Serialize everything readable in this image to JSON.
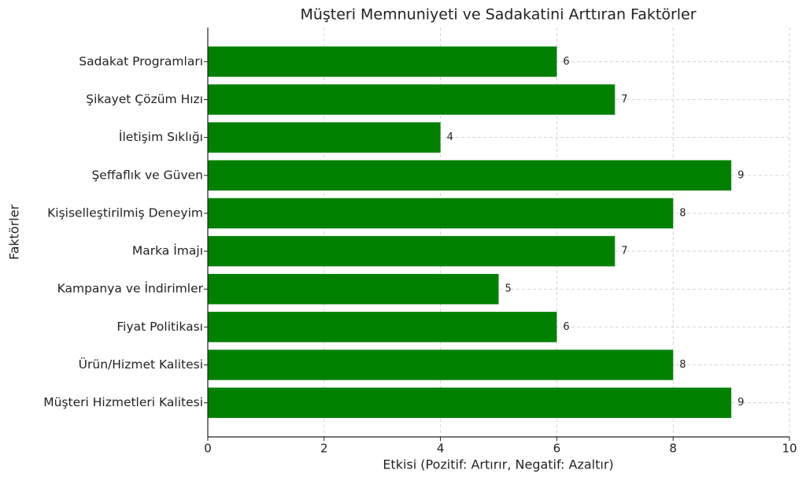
{
  "chart_data": {
    "type": "barh",
    "title": "Müşteri Memnuniyeti ve Sadakatini Arttıran Faktörler",
    "x_label": "Etkisi (Pozitif: Artırır, Negatif: Azaltır)",
    "y_label": "Faktörler",
    "categories": [
      "Müşteri Hizmetleri Kalitesi",
      "Ürün/Hizmet Kalitesi",
      "Fiyat Politikası",
      "Kampanya ve İndirimler",
      "Marka İmajı",
      "Kişiselleştirilmiş Deneyim",
      "Şeffaflık ve Güven",
      "İletişim Sıklığı",
      "Şikayet Çözüm Hızı",
      "Sadakat Programları"
    ],
    "values": [
      9,
      8,
      6,
      5,
      7,
      8,
      9,
      4,
      7,
      6
    ],
    "color": "#008000",
    "xlim": [
      0,
      10
    ],
    "xticks": [
      0,
      2,
      4,
      6,
      8,
      10
    ],
    "grid": true
  }
}
